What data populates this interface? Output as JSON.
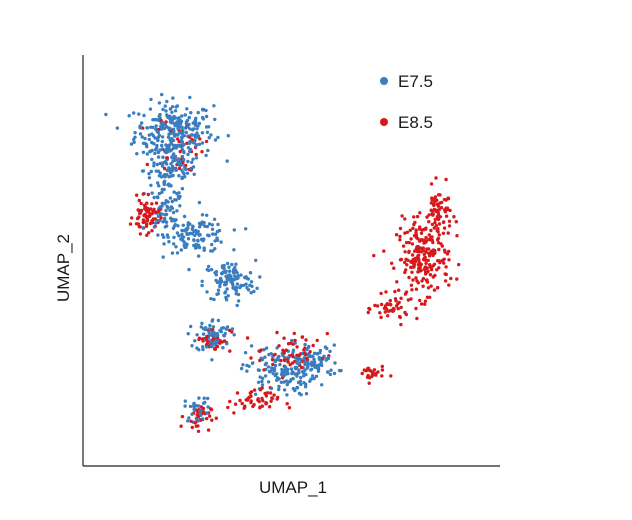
{
  "chart_data": {
    "type": "scatter",
    "xlabel": "UMAP_1",
    "ylabel": "UMAP_2",
    "xlim": [
      0,
      100
    ],
    "ylim": [
      0,
      100
    ],
    "grid": false,
    "ticks": false,
    "legend_position": "top-right",
    "series": [
      {
        "name": "E7.5",
        "color": "#3a7ebf",
        "regions": [
          {
            "cx": 20,
            "cy": 84,
            "rx": 9,
            "ry": 7,
            "n": 260
          },
          {
            "cx": 19,
            "cy": 74,
            "rx": 6,
            "ry": 6,
            "n": 110
          },
          {
            "cx": 18,
            "cy": 62,
            "rx": 4,
            "ry": 6,
            "n": 60
          },
          {
            "cx": 26,
            "cy": 57,
            "rx": 7,
            "ry": 4,
            "n": 110
          },
          {
            "cx": 34,
            "cy": 45,
            "rx": 6,
            "ry": 5,
            "n": 110
          },
          {
            "cx": 30,
            "cy": 31,
            "rx": 4,
            "ry": 4,
            "n": 70
          },
          {
            "cx": 47,
            "cy": 22,
            "rx": 8,
            "ry": 6,
            "n": 150
          },
          {
            "cx": 56,
            "cy": 24,
            "rx": 5,
            "ry": 4,
            "n": 70
          },
          {
            "cx": 26,
            "cy": 12,
            "rx": 3,
            "ry": 3,
            "n": 30
          }
        ]
      },
      {
        "name": "E8.5",
        "color": "#d7191c",
        "regions": [
          {
            "cx": 83,
            "cy": 51,
            "rx": 6,
            "ry": 9,
            "n": 220
          },
          {
            "cx": 87,
            "cy": 63,
            "rx": 3,
            "ry": 6,
            "n": 70
          },
          {
            "cx": 75,
            "cy": 38,
            "rx": 4,
            "ry": 3,
            "n": 40
          },
          {
            "cx": 70,
            "cy": 21,
            "rx": 3,
            "ry": 2,
            "n": 25
          },
          {
            "cx": 13,
            "cy": 62,
            "rx": 3,
            "ry": 4,
            "n": 70
          },
          {
            "cx": 22,
            "cy": 80,
            "rx": 6,
            "ry": 7,
            "n": 40
          },
          {
            "cx": 30,
            "cy": 30,
            "rx": 4,
            "ry": 3,
            "n": 35
          },
          {
            "cx": 26,
            "cy": 10,
            "rx": 3,
            "ry": 3,
            "n": 35
          },
          {
            "cx": 40,
            "cy": 14,
            "rx": 6,
            "ry": 3,
            "n": 50
          },
          {
            "cx": 50,
            "cy": 26,
            "rx": 8,
            "ry": 5,
            "n": 60
          }
        ]
      }
    ]
  }
}
